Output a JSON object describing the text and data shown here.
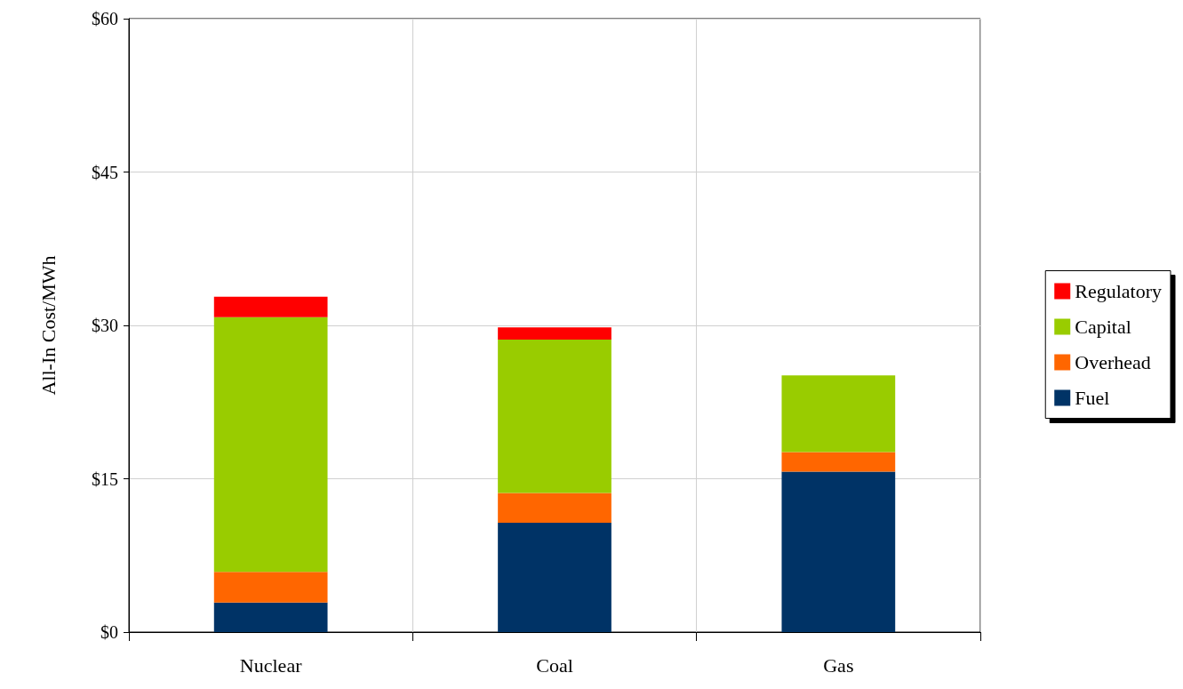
{
  "chart_data": {
    "type": "bar",
    "ylabel": "All-In Cost/MWh",
    "categories": [
      "Nuclear",
      "Coal",
      "Gas"
    ],
    "stacked": true,
    "ylim": [
      0,
      60
    ],
    "yticks": [
      {
        "value": 0,
        "label": "$0"
      },
      {
        "value": 15,
        "label": "$15"
      },
      {
        "value": 30,
        "label": "$30"
      },
      {
        "value": 45,
        "label": "$45"
      },
      {
        "value": 60,
        "label": "$60"
      }
    ],
    "grid": true,
    "legend": "right",
    "series": [
      {
        "name": "Fuel",
        "color": "#003366",
        "values": [
          2.9,
          10.7,
          15.7
        ]
      },
      {
        "name": "Overhead",
        "color": "#ff6600",
        "values": [
          3.0,
          2.9,
          1.9
        ]
      },
      {
        "name": "Capital",
        "color": "#99cc00",
        "values": [
          24.9,
          15.0,
          7.5
        ]
      },
      {
        "name": "Regulatory",
        "color": "#ff0000",
        "values": [
          2.0,
          1.2,
          null
        ]
      }
    ]
  }
}
